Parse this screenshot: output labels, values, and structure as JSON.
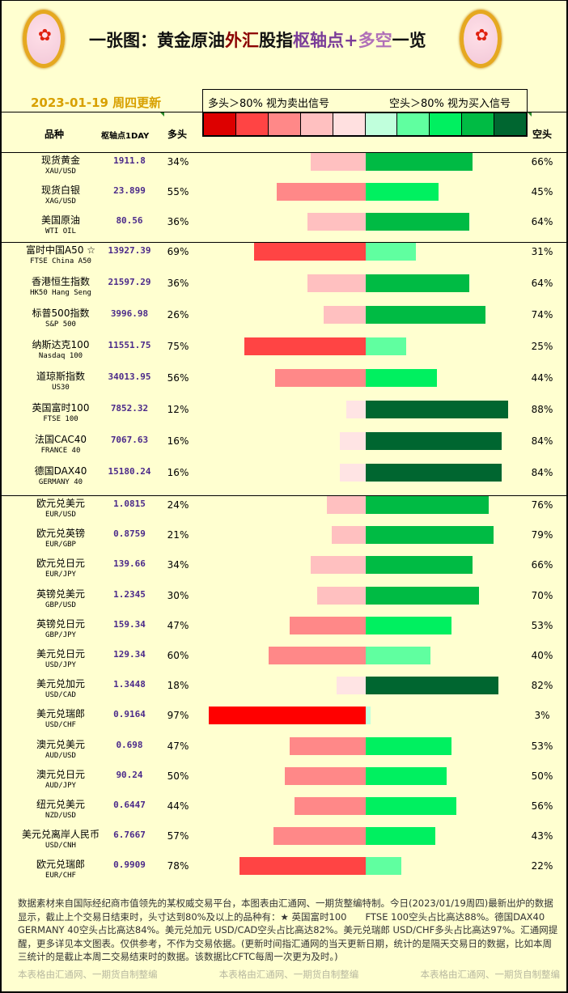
{
  "header": {
    "title_parts": [
      {
        "t": "一张图：黄金原油",
        "c": "#111111"
      },
      {
        "t": "外汇",
        "c": "#8b0000"
      },
      {
        "t": "股指",
        "c": "#111111"
      },
      {
        "t": "枢轴点+",
        "c": "#7a3c98"
      },
      {
        "t": "多空",
        "c": "#b070b8"
      },
      {
        "t": "一览",
        "c": "#111111"
      }
    ],
    "date": "2023-01-19 周四更新"
  },
  "legend": {
    "long_note": "多头＞80% 视为卖出信号",
    "short_note": "空头＞80% 视为买入信号",
    "colors": [
      "#dd0000",
      "#ff4444",
      "#ff8888",
      "#ffc0c0",
      "#ffe0e0",
      "#c0ffdc",
      "#60ffa0",
      "#00f060",
      "#00bb44",
      "#006630"
    ]
  },
  "columns": {
    "name": "品种",
    "pivot": "枢轴点1DAY",
    "long": "多头",
    "short": "空头"
  },
  "chart_data": {
    "type": "bar",
    "orientation": "horizontal diverging",
    "unit": "%",
    "groups": [
      [
        {
          "name": "现货黄金",
          "code": "XAU/USD",
          "pivot": "1911.8",
          "long": 34,
          "short": 66
        },
        {
          "name": "现货白银",
          "code": "XAG/USD",
          "pivot": "23.899",
          "long": 55,
          "short": 45
        },
        {
          "name": "美国原油",
          "code": "WTI OIL",
          "pivot": "80.56",
          "long": 36,
          "short": 64
        }
      ],
      [
        {
          "name": "富时中国A50 ☆",
          "code": "FTSE China A50",
          "pivot": "13927.39",
          "long": 69,
          "short": 31
        },
        {
          "name": "香港恒生指数",
          "code": "HK50 Hang Seng",
          "pivot": "21597.29",
          "long": 36,
          "short": 64
        },
        {
          "name": "标普500指数",
          "code": "S&P 500",
          "pivot": "3996.98",
          "long": 26,
          "short": 74
        },
        {
          "name": "纳斯达克100",
          "code": "Nasdaq 100",
          "pivot": "11551.75",
          "long": 75,
          "short": 25
        },
        {
          "name": "道琼斯指数",
          "code": "US30",
          "pivot": "34013.95",
          "long": 56,
          "short": 44
        },
        {
          "name": "英国富时100",
          "code": "FTSE 100",
          "pivot": "7852.32",
          "long": 12,
          "short": 88
        },
        {
          "name": "法国CAC40",
          "code": "FRANCE 40",
          "pivot": "7067.63",
          "long": 16,
          "short": 84
        },
        {
          "name": "德国DAX40",
          "code": "GERMANY 40",
          "pivot": "15180.24",
          "long": 16,
          "short": 84
        }
      ],
      [
        {
          "name": "欧元兑美元",
          "code": "EUR/USD",
          "pivot": "1.0815",
          "long": 24,
          "short": 76
        },
        {
          "name": "欧元兑英镑",
          "code": "EUR/GBP",
          "pivot": "0.8759",
          "long": 21,
          "short": 79
        },
        {
          "name": "欧元兑日元",
          "code": "EUR/JPY",
          "pivot": "139.66",
          "long": 34,
          "short": 66
        },
        {
          "name": "英镑兑美元",
          "code": "GBP/USD",
          "pivot": "1.2345",
          "long": 30,
          "short": 70
        },
        {
          "name": "英镑兑日元",
          "code": "GBP/JPY",
          "pivot": "159.34",
          "long": 47,
          "short": 53
        },
        {
          "name": "美元兑日元",
          "code": "USD/JPY",
          "pivot": "129.34",
          "long": 60,
          "short": 40
        },
        {
          "name": "美元兑加元",
          "code": "USD/CAD",
          "pivot": "1.3448",
          "long": 18,
          "short": 82
        },
        {
          "name": "美元兑瑞郎",
          "code": "USD/CHF",
          "pivot": "0.9164",
          "long": 97,
          "short": 3
        },
        {
          "name": "澳元兑美元",
          "code": "AUD/USD",
          "pivot": "0.698",
          "long": 47,
          "short": 53
        },
        {
          "name": "澳元兑日元",
          "code": "AUD/JPY",
          "pivot": "90.24",
          "long": 50,
          "short": 50
        },
        {
          "name": "纽元兑美元",
          "code": "NZD/USD",
          "pivot": "0.6447",
          "long": 44,
          "short": 56
        },
        {
          "name": "美元兑离岸人民币",
          "code": "USD/CNH",
          "pivot": "6.7667",
          "long": 57,
          "short": 43
        },
        {
          "name": "欧元兑瑞郎",
          "code": "EUR/CHF",
          "pivot": "0.9909",
          "long": 78,
          "short": 22
        }
      ]
    ]
  },
  "footer": {
    "text": "数据素材来自国际经纪商市值领先的某权威交易平台，本图表由汇通网、一期货整编特制。今日(2023/01/19周四)最新出炉的数据显示，截止上个交易日结束时，头寸达到80%及以上的品种有：★ 英国富时100　　FTSE 100空头占比高达88%。德国DAX40　　GERMANY 40空头占比高达84%。美元兑加元 USD/CAD空头占比高达82%。美元兑瑞郎 USD/CHF多头占比高达97%。汇通网提醒，更多详见本文图表。仅供参考，不作为交易依据。(更新时间指汇通网的当天更新日期，统计的是隔天交易日的数据，比如本周三统计的是截止本周二交易结束时的数据。该数据比CFTC每周一次更为及时。)",
    "watermark": "本表格由汇通网、一期货自制整编"
  }
}
